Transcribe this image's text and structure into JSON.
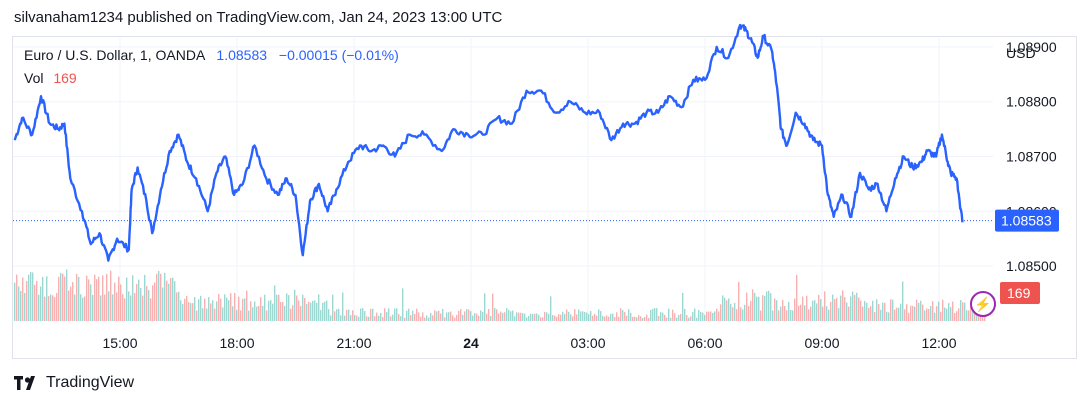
{
  "caption": "silvanaham1234 published on TradingView.com, Jan 24, 2023 13:00 UTC",
  "legend": {
    "symbol": "Euro / U.S. Dollar, 1, OANDA",
    "last": "1.08583",
    "change": "−0.00015 (−0.01%)",
    "vol_label": "Vol",
    "vol_value": "169"
  },
  "currency": "USD",
  "footer": {
    "brand": "TradingView",
    "icon": "tradingview-logo-icon"
  },
  "colors": {
    "line": "#2962ff",
    "vol_up": "#26a69a",
    "vol_down": "#ef5350",
    "grid": "#f0f3fa"
  },
  "chart_data": {
    "type": "line",
    "x_ticks": [
      "15:00",
      "18:00",
      "21:00",
      "24",
      "03:00",
      "06:00",
      "09:00",
      "12:00"
    ],
    "y_ticks": [
      "1.08900",
      "1.08800",
      "1.08700",
      "1.08600",
      "1.08500"
    ],
    "ylim": [
      1.0844,
      1.0896
    ],
    "last_value": 1.08583,
    "last_label": "1.08583",
    "volume_label": "169",
    "series": [
      {
        "values": [
          [
            0.0,
            1.0873
          ],
          [
            0.25,
            1.0877
          ],
          [
            0.6,
            1.0874
          ],
          [
            0.9,
            1.0881
          ],
          [
            1.2,
            1.0876
          ],
          [
            1.5,
            1.0875
          ],
          [
            1.7,
            1.0876
          ],
          [
            1.9,
            1.0866
          ],
          [
            2.3,
            1.086
          ],
          [
            2.6,
            1.0854
          ],
          [
            2.9,
            1.0856
          ],
          [
            3.2,
            1.0851
          ],
          [
            3.5,
            1.0855
          ],
          [
            3.9,
            1.0853
          ],
          [
            4.0,
            1.0864
          ],
          [
            4.2,
            1.0868
          ],
          [
            4.5,
            1.0862
          ],
          [
            4.7,
            1.0856
          ],
          [
            5.0,
            1.0864
          ],
          [
            5.3,
            1.0871
          ],
          [
            5.6,
            1.0874
          ],
          [
            5.9,
            1.0869
          ],
          [
            6.2,
            1.0866
          ],
          [
            6.6,
            1.086
          ],
          [
            6.9,
            1.0867
          ],
          [
            7.2,
            1.087
          ],
          [
            7.5,
            1.0863
          ],
          [
            7.8,
            1.0865
          ],
          [
            8.2,
            1.0872
          ],
          [
            8.6,
            1.0866
          ],
          [
            9.0,
            1.0863
          ],
          [
            9.3,
            1.0866
          ],
          [
            9.6,
            1.0863
          ],
          [
            9.85,
            1.0852
          ],
          [
            10.1,
            1.0862
          ],
          [
            10.4,
            1.0865
          ],
          [
            10.7,
            1.086
          ],
          [
            11.0,
            1.0864
          ],
          [
            11.4,
            1.0869
          ],
          [
            11.8,
            1.0872
          ],
          [
            12.2,
            1.0871
          ],
          [
            12.6,
            1.0872
          ],
          [
            13.0,
            1.087
          ],
          [
            13.5,
            1.0874
          ],
          [
            14.0,
            1.0874
          ],
          [
            14.6,
            1.0871
          ],
          [
            15.0,
            1.0875
          ],
          [
            15.5,
            1.0874
          ],
          [
            16.0,
            1.0874
          ],
          [
            16.5,
            1.0877
          ],
          [
            17.0,
            1.0876
          ],
          [
            17.5,
            1.0882
          ],
          [
            18.0,
            1.0882
          ],
          [
            18.5,
            1.0878
          ],
          [
            19.0,
            1.088
          ],
          [
            19.5,
            1.0878
          ],
          [
            20.0,
            1.0878
          ],
          [
            20.4,
            1.0873
          ],
          [
            20.8,
            1.0876
          ],
          [
            21.2,
            1.0876
          ],
          [
            21.6,
            1.0878
          ],
          [
            22.0,
            1.0878
          ],
          [
            22.4,
            1.0881
          ],
          [
            22.8,
            1.0879
          ],
          [
            23.2,
            1.0884
          ],
          [
            23.6,
            1.0884
          ],
          [
            24.0,
            1.089
          ],
          [
            24.4,
            1.0888
          ],
          [
            24.8,
            1.0894
          ],
          [
            25.0,
            1.0893
          ],
          [
            25.2,
            1.0891
          ],
          [
            25.4,
            1.0888
          ],
          [
            25.6,
            1.0892
          ],
          [
            25.9,
            1.0889
          ],
          [
            26.05,
            1.0883
          ],
          [
            26.2,
            1.0875
          ],
          [
            26.4,
            1.0872
          ],
          [
            26.7,
            1.0878
          ],
          [
            27.0,
            1.0876
          ],
          [
            27.3,
            1.0873
          ],
          [
            27.6,
            1.0872
          ],
          [
            27.8,
            1.0863
          ],
          [
            28.0,
            1.0859
          ],
          [
            28.3,
            1.0863
          ],
          [
            28.6,
            1.0859
          ],
          [
            28.9,
            1.0867
          ],
          [
            29.2,
            1.0864
          ],
          [
            29.5,
            1.0865
          ],
          [
            29.8,
            1.086
          ],
          [
            30.1,
            1.0866
          ],
          [
            30.4,
            1.087
          ],
          [
            30.7,
            1.0868
          ],
          [
            31.0,
            1.0869
          ],
          [
            31.2,
            1.0871
          ],
          [
            31.5,
            1.087
          ],
          [
            31.7,
            1.0874
          ],
          [
            31.9,
            1.0869
          ],
          [
            32.0,
            1.0867
          ],
          [
            32.2,
            1.0866
          ],
          [
            32.4,
            1.0858
          ]
        ]
      }
    ]
  }
}
